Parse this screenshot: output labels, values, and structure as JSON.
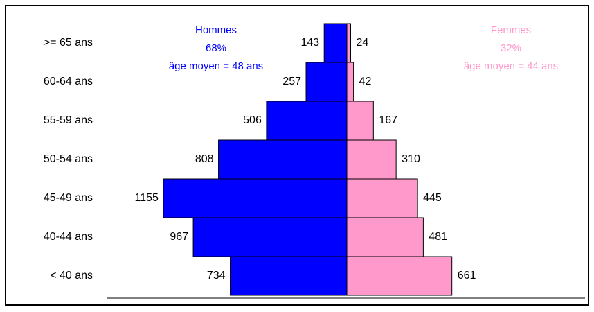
{
  "chart_data": {
    "type": "pyramid",
    "categories": [
      ">= 65 ans",
      "60-64 ans",
      "55-59 ans",
      "50-54 ans",
      "45-49 ans",
      "40-44 ans",
      "< 40 ans"
    ],
    "series": [
      {
        "name": "Hommes",
        "color": "#0000ff",
        "side": "left",
        "notes": [
          "68%",
          "âge moyen = 48 ans"
        ],
        "values": [
          143,
          257,
          506,
          808,
          1155,
          967,
          734
        ]
      },
      {
        "name": "Femmes",
        "color": "#ff99cc",
        "side": "right",
        "notes": [
          "32%",
          "âge moyen = 44 ans"
        ],
        "values": [
          24,
          42,
          167,
          310,
          445,
          481,
          661
        ]
      }
    ]
  }
}
